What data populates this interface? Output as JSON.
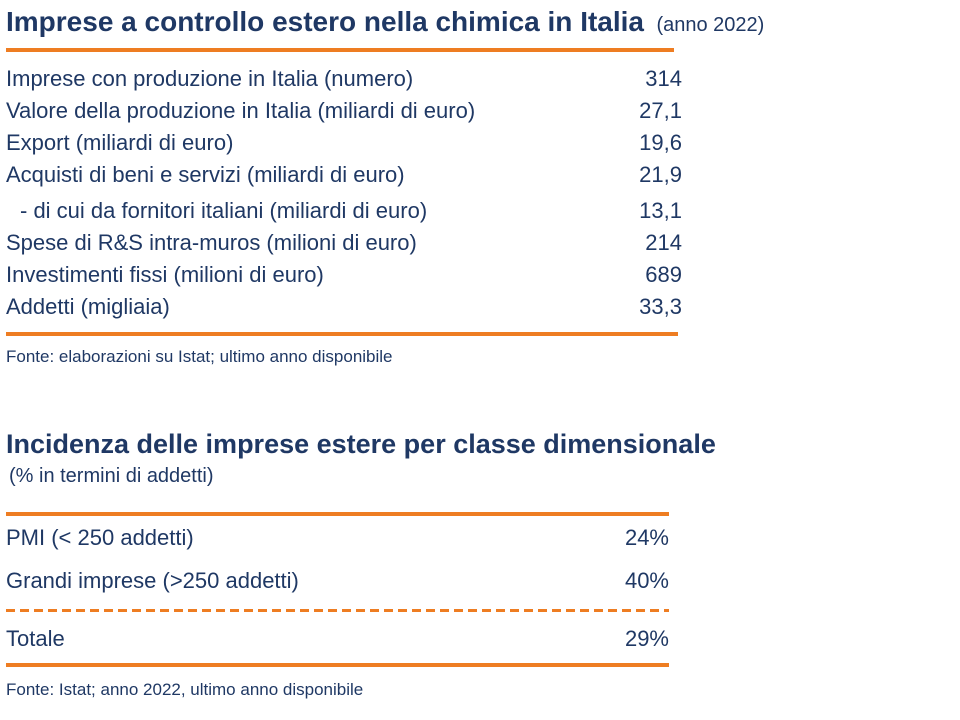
{
  "colors": {
    "navy": "#1F3864",
    "orange": "#EE7D22"
  },
  "section1": {
    "title": "Imprese a controllo estero nella chimica in Italia",
    "title_suffix": "(anno 2022)",
    "rows": [
      {
        "label": "Imprese con produzione in Italia (numero)",
        "value": "314"
      },
      {
        "label": "Valore della produzione in Italia (miliardi di euro)",
        "value": "27,1"
      },
      {
        "label": "Export (miliardi di euro)",
        "value": "19,6"
      },
      {
        "label": "Acquisti di beni e servizi (miliardi di euro)",
        "value": "21,9"
      },
      {
        "label": "- di cui da fornitori italiani (miliardi di euro)",
        "value": "13,1"
      },
      {
        "label": "Spese di R&S intra-muros (milioni di euro)",
        "value": "214"
      },
      {
        "label": "Investimenti fissi (milioni di euro)",
        "value": "689"
      },
      {
        "label": "Addetti (migliaia)",
        "value": "33,3"
      }
    ],
    "fonte": "Fonte: elaborazioni su Istat; ultimo anno disponibile"
  },
  "section2": {
    "title": "Incidenza delle imprese estere per classe dimensionale",
    "subtitle": "(% in termini di addetti)",
    "rows": [
      {
        "label": "PMI (< 250 addetti)",
        "value": "24%"
      },
      {
        "label": "Grandi imprese (>250 addetti)",
        "value": "40%"
      }
    ],
    "total": {
      "label": "Totale",
      "value": "29%"
    },
    "fonte": "Fonte: Istat; anno 2022, ultimo anno disponibile"
  }
}
